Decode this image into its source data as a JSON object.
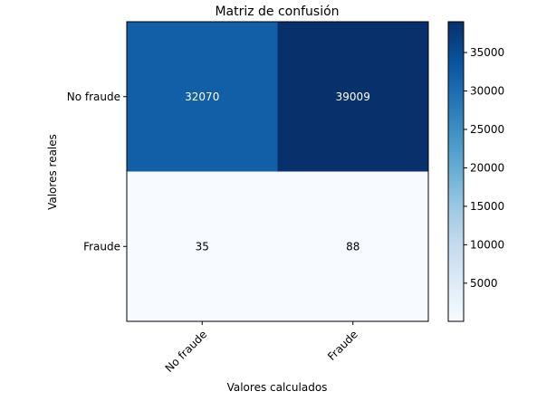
{
  "chart_data": {
    "type": "heatmap",
    "title": "Matriz de confusión",
    "xlabel": "Valores calculados",
    "ylabel": "Valores reales",
    "x_categories": [
      "No fraude",
      "Fraude"
    ],
    "y_categories": [
      "No fraude",
      "Fraude"
    ],
    "values": [
      [
        32070,
        39009
      ],
      [
        35,
        88
      ]
    ],
    "colormap": "Blues",
    "colorbar": {
      "min": 35,
      "max": 39009,
      "ticks": [
        5000,
        10000,
        15000,
        20000,
        25000,
        30000,
        35000
      ]
    }
  },
  "colors": {
    "cmap_low": "#f7fbff",
    "cmap_high": "#08306b",
    "text_light": "#ffffff",
    "text_dark": "#000000"
  }
}
